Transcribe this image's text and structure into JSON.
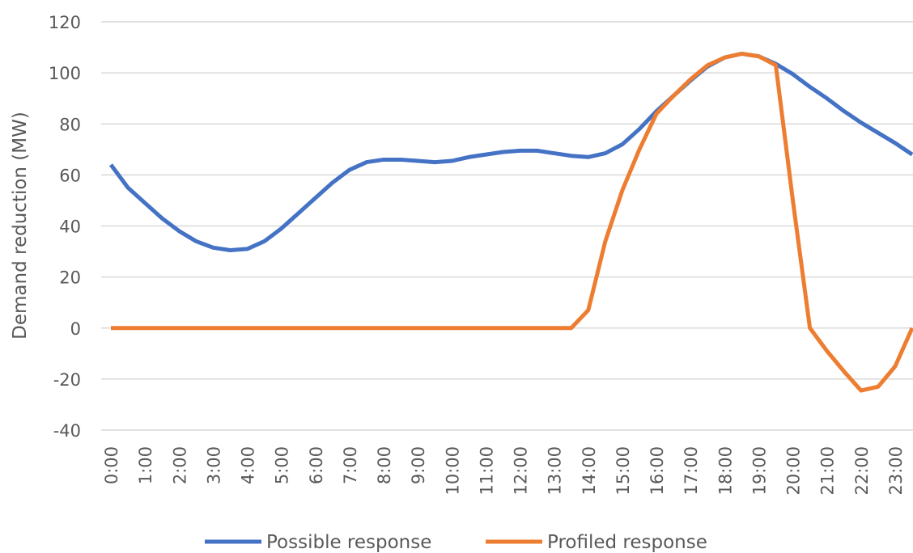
{
  "chart_data": {
    "type": "line",
    "y_label": "Demand reduction (MW)",
    "categories": [
      "0:00",
      null,
      "1:00",
      null,
      "2:00",
      null,
      "3:00",
      null,
      "4:00",
      null,
      "5:00",
      null,
      "6:00",
      null,
      "7:00",
      null,
      "8:00",
      null,
      "9:00",
      null,
      "10:00",
      null,
      "11:00",
      null,
      "12:00",
      null,
      "13:00",
      null,
      "14:00",
      null,
      "15:00",
      null,
      "16:00",
      null,
      "17:00",
      null,
      "18:00",
      null,
      "19:00",
      null,
      "20:00",
      null,
      "21:00",
      null,
      "22:00",
      null,
      "23:00",
      null
    ],
    "series": [
      {
        "name": "Possible response",
        "color": "#4472c4",
        "values": [
          64,
          55,
          49,
          43,
          38,
          34,
          31.5,
          30.5,
          31,
          34,
          39,
          45,
          51,
          57,
          62,
          65,
          66,
          66,
          65.5,
          65,
          65.5,
          67,
          68,
          69,
          69.5,
          69.5,
          68.5,
          67.5,
          67,
          68.5,
          72,
          78,
          85,
          91,
          97,
          102.5,
          106,
          107.5,
          106.5,
          103.5,
          99.5,
          94.5,
          90,
          85,
          80.5,
          76.5,
          72.5,
          68
        ]
      },
      {
        "name": "Profiled response",
        "color": "#ed7d31",
        "values": [
          0,
          0,
          0,
          0,
          0,
          0,
          0,
          0,
          0,
          0,
          0,
          0,
          0,
          0,
          0,
          0,
          0,
          0,
          0,
          0,
          0,
          0,
          0,
          0,
          0,
          0,
          0,
          0,
          7,
          34,
          54,
          70,
          84,
          91,
          97.5,
          103,
          106,
          107.5,
          106.5,
          103,
          50,
          0,
          -9,
          -17,
          -24.5,
          -23,
          -15,
          0
        ]
      }
    ],
    "ylim": [
      -40,
      120
    ],
    "yticks": [
      -40,
      -20,
      0,
      20,
      40,
      60,
      80,
      100,
      120
    ],
    "grid": true,
    "legend": "bottom"
  }
}
